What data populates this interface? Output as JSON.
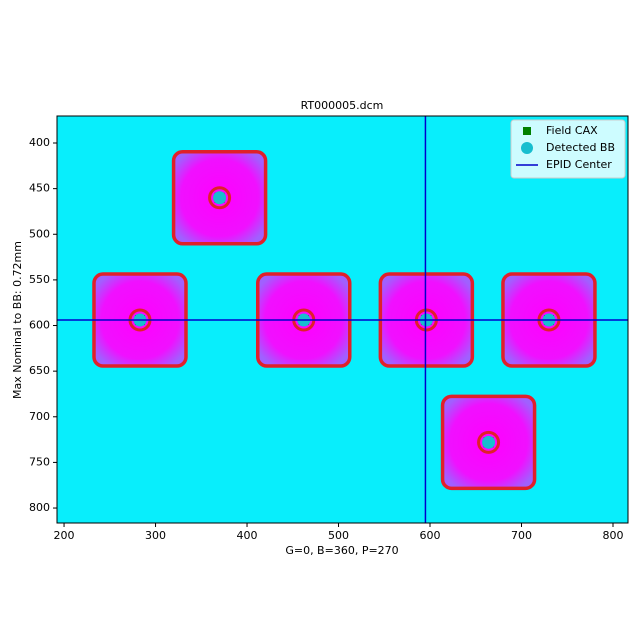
{
  "chart_data": {
    "type": "scatter",
    "title": "RT000005.dcm",
    "x_label": "G=0, B=360, P=270",
    "y_label": "Max Nominal to BB: 0.72mm",
    "xlim": [
      192.3,
      816.4
    ],
    "ylim": [
      816.4,
      370.4
    ],
    "xticks": [
      200,
      300,
      400,
      500,
      600,
      700,
      800
    ],
    "yticks": [
      400,
      450,
      500,
      550,
      600,
      650,
      700,
      750,
      800
    ],
    "series": [
      {
        "name": "Field CAX",
        "color": "#008000",
        "marker": "square",
        "x": [
          370,
          283,
          462,
          596,
          730,
          664
        ],
        "y": [
          460,
          594,
          594,
          594,
          594,
          728
        ]
      },
      {
        "name": "Detected BB",
        "color": "#17becf",
        "marker": "circle",
        "x": [
          370,
          283,
          462,
          596,
          730,
          664
        ],
        "y": [
          460,
          594,
          594,
          594,
          594,
          728
        ]
      },
      {
        "name": "EPID Center",
        "color": "#0000cc",
        "marker": "crosshair",
        "x": [
          595
        ],
        "y": [
          594
        ]
      }
    ],
    "legend": "upper right"
  }
}
